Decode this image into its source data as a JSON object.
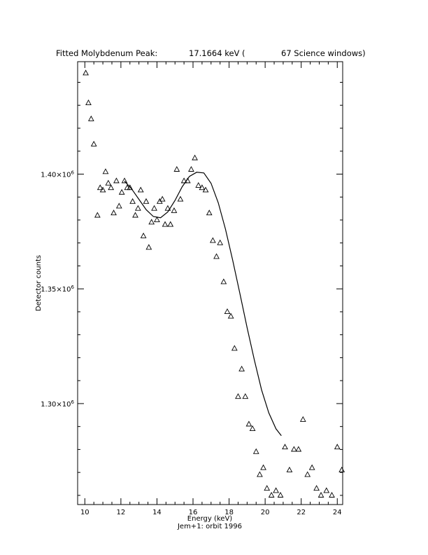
{
  "chart_data": {
    "type": "scatter",
    "title": {
      "part1": "Fitted Molybdenum Peak:",
      "part2": "17.1664 keV (",
      "part3": "67 Science windows)"
    },
    "xlabel": "Energy (keV)",
    "subtitle": "Jem+1: orbit 1996",
    "ylabel": "Detector counts",
    "xlim": [
      9.6,
      24.3
    ],
    "ylim": [
      1256000,
      1449000
    ],
    "x_ticks": [
      10,
      12,
      14,
      16,
      18,
      20,
      22,
      24
    ],
    "x_tick_labels": [
      "10",
      "12",
      "14",
      "16",
      "18",
      "20",
      "22",
      "24"
    ],
    "y_ticks": [
      1300000,
      1350000,
      1400000
    ],
    "y_tick_labels": [
      {
        "base": "1.30×10",
        "exp": "6"
      },
      {
        "base": "1.35×10",
        "exp": "6"
      },
      {
        "base": "1.40×10",
        "exp": "6"
      }
    ],
    "grid": false,
    "marker": "triangle",
    "x": [
      10.05,
      10.2,
      10.35,
      10.5,
      10.7,
      10.85,
      11.0,
      11.15,
      11.3,
      11.45,
      11.6,
      11.75,
      11.9,
      12.05,
      12.2,
      12.35,
      12.5,
      12.65,
      12.8,
      12.95,
      13.1,
      13.25,
      13.4,
      13.55,
      13.7,
      13.85,
      14.0,
      14.15,
      14.3,
      14.45,
      14.6,
      14.75,
      14.95,
      15.1,
      15.3,
      15.5,
      15.7,
      15.9,
      16.1,
      16.3,
      16.5,
      16.7,
      16.9,
      17.1,
      17.3,
      17.5,
      17.7,
      17.9,
      18.1,
      18.3,
      18.5,
      18.7,
      18.9,
      19.1,
      19.3,
      19.5,
      19.7,
      19.9,
      20.1,
      20.35,
      20.6,
      20.85,
      21.1,
      21.35,
      21.6,
      21.85,
      22.1,
      22.35,
      22.6,
      22.85,
      23.1,
      23.4,
      23.7,
      24.0,
      24.25
    ],
    "y": [
      1444000,
      1431000,
      1424000,
      1413000,
      1382000,
      1394000,
      1393000,
      1401000,
      1396000,
      1394000,
      1383000,
      1397000,
      1386000,
      1392000,
      1397000,
      1394000,
      1394000,
      1388000,
      1382000,
      1385000,
      1393000,
      1373000,
      1388000,
      1368000,
      1379000,
      1385000,
      1380000,
      1388000,
      1389000,
      1378000,
      1385000,
      1378000,
      1384000,
      1402000,
      1389000,
      1397000,
      1397000,
      1402000,
      1407000,
      1395000,
      1394000,
      1393000,
      1383000,
      1371000,
      1364000,
      1370000,
      1353000,
      1340000,
      1338000,
      1324000,
      1303000,
      1315000,
      1303000,
      1291000,
      1289000,
      1279000,
      1269000,
      1272000,
      1263000,
      1260000,
      1262000,
      1260000,
      1281000,
      1271000,
      1280000,
      1280000,
      1293000,
      1269000,
      1272000,
      1263000,
      1260000,
      1262000,
      1260000,
      1281000,
      1271000
    ],
    "fit": {
      "x": [
        12.2,
        12.6,
        13.0,
        13.4,
        13.8,
        14.2,
        14.6,
        15.0,
        15.4,
        15.8,
        16.2,
        16.6,
        17.0,
        17.4,
        17.8,
        18.2,
        18.6,
        19.0,
        19.4,
        19.8,
        20.2,
        20.6,
        20.9
      ],
      "y": [
        1397000,
        1393500,
        1389000,
        1384500,
        1381500,
        1381000,
        1383500,
        1388500,
        1394500,
        1399000,
        1400800,
        1400500,
        1396000,
        1387500,
        1376000,
        1362500,
        1348000,
        1333000,
        1319000,
        1306000,
        1296000,
        1289000,
        1286000
      ]
    }
  }
}
